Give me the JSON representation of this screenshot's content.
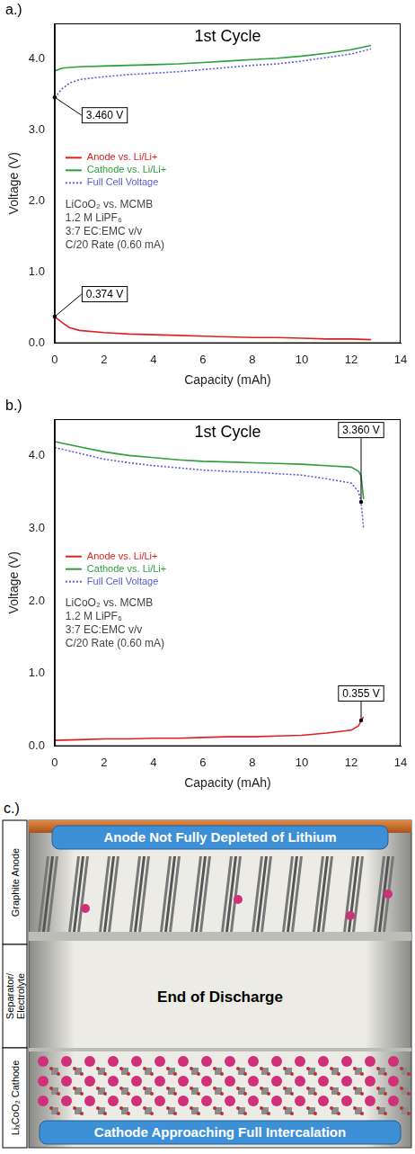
{
  "chart_data": [
    {
      "type": "line",
      "panel_label": "a.)",
      "title": "1st Cycle",
      "x_label": "Capacity (mAh)",
      "y_label": "Voltage (V)",
      "x": [
        0,
        0.3,
        0.6,
        1,
        2,
        3,
        4,
        5,
        6,
        7,
        8,
        9,
        10,
        11,
        12,
        12.8
      ],
      "series": [
        {
          "name": "Anode vs. Li/Li+",
          "color": "#e02020",
          "line_style": "solid",
          "values": [
            0.374,
            0.29,
            0.22,
            0.18,
            0.15,
            0.13,
            0.12,
            0.11,
            0.1,
            0.09,
            0.08,
            0.08,
            0.07,
            0.06,
            0.06,
            0.05
          ]
        },
        {
          "name": "Cathode vs. Li/Li+",
          "color": "#2e9e3e",
          "line_style": "solid",
          "values": [
            3.83,
            3.87,
            3.88,
            3.89,
            3.9,
            3.91,
            3.92,
            3.93,
            3.95,
            3.97,
            3.99,
            4.01,
            4.04,
            4.08,
            4.13,
            4.19
          ]
        },
        {
          "name": "Full Cell Voltage",
          "color": "#5b5bd6",
          "line_style": "dotted",
          "values": [
            3.46,
            3.58,
            3.66,
            3.71,
            3.75,
            3.78,
            3.8,
            3.82,
            3.85,
            3.88,
            3.91,
            3.93,
            3.97,
            4.02,
            4.07,
            4.14
          ]
        }
      ],
      "xlim": [
        0,
        14
      ],
      "xticks": [
        0,
        2,
        4,
        6,
        8,
        10,
        12,
        14
      ],
      "ylim": [
        0,
        4.5
      ],
      "yticks": [
        {
          "value": 0,
          "label": "0.0"
        },
        {
          "value": 1,
          "label": "1.0"
        },
        {
          "value": 2,
          "label": "2.0"
        },
        {
          "value": 3,
          "label": "3.0"
        },
        {
          "value": 4,
          "label": "4.0"
        }
      ],
      "grid": false,
      "legend": "left",
      "notes": [
        "LiCoO₂ vs. MCMB",
        "1.2 M LiPF₆",
        "3:7 EC:EMC v/v",
        "C/20 Rate (0.60 mA)"
      ],
      "annotations": [
        {
          "text": "3.460 V",
          "x": 0,
          "y": 3.46
        },
        {
          "text": "0.374 V",
          "x": 0,
          "y": 0.374
        }
      ]
    },
    {
      "type": "line",
      "panel_label": "b.)",
      "title": "1st Cycle",
      "x_label": "Capacity (mAh)",
      "y_label": "Voltage (V)",
      "x": [
        0,
        1,
        2,
        3,
        4,
        5,
        6,
        7,
        8,
        9,
        10,
        11,
        12,
        12.3,
        12.4,
        12.5
      ],
      "series": [
        {
          "name": "Anode vs. Li/Li+",
          "color": "#e02020",
          "line_style": "solid",
          "values": [
            0.08,
            0.09,
            0.1,
            0.1,
            0.11,
            0.11,
            0.12,
            0.13,
            0.13,
            0.14,
            0.15,
            0.18,
            0.22,
            0.28,
            0.355,
            0.4
          ]
        },
        {
          "name": "Cathode vs. Li/Li+",
          "color": "#2e9e3e",
          "line_style": "solid",
          "values": [
            4.19,
            4.12,
            4.05,
            4.0,
            3.97,
            3.94,
            3.92,
            3.91,
            3.9,
            3.89,
            3.88,
            3.86,
            3.84,
            3.78,
            3.72,
            3.4
          ]
        },
        {
          "name": "Full Cell Voltage",
          "color": "#5b5bd6",
          "line_style": "dotted",
          "values": [
            4.11,
            4.03,
            3.95,
            3.9,
            3.86,
            3.83,
            3.8,
            3.78,
            3.77,
            3.75,
            3.73,
            3.68,
            3.62,
            3.5,
            3.36,
            3.0
          ]
        }
      ],
      "xlim": [
        0,
        14
      ],
      "xticks": [
        0,
        2,
        4,
        6,
        8,
        10,
        12,
        14
      ],
      "ylim": [
        0,
        4.5
      ],
      "yticks": [
        {
          "value": 0,
          "label": "0.0"
        },
        {
          "value": 1,
          "label": "1.0"
        },
        {
          "value": 2,
          "label": "2.0"
        },
        {
          "value": 3,
          "label": "3.0"
        },
        {
          "value": 4,
          "label": "4.0"
        }
      ],
      "grid": false,
      "legend": "left",
      "notes": [
        "LiCoO₂ vs. MCMB",
        "1.2 M LiPF₆",
        "3:7 EC:EMC v/v",
        "C/20 Rate (0.60 mA)"
      ],
      "annotations": [
        {
          "text": "3.360 V",
          "x": 12.4,
          "y": 3.36
        },
        {
          "text": "0.355 V",
          "x": 12.4,
          "y": 0.355
        }
      ]
    }
  ],
  "diagram": {
    "panel_label": "c.)",
    "side_labels": [
      "Graphite Anode",
      "Separator/ Electrolyte",
      "LiₓCoO₂ Cathode"
    ],
    "top_banner": "Anode Not Fully Depleted of Lithium",
    "center_text": "End of Discharge",
    "bottom_banner": "Cathode Approaching Full Intercalation"
  }
}
